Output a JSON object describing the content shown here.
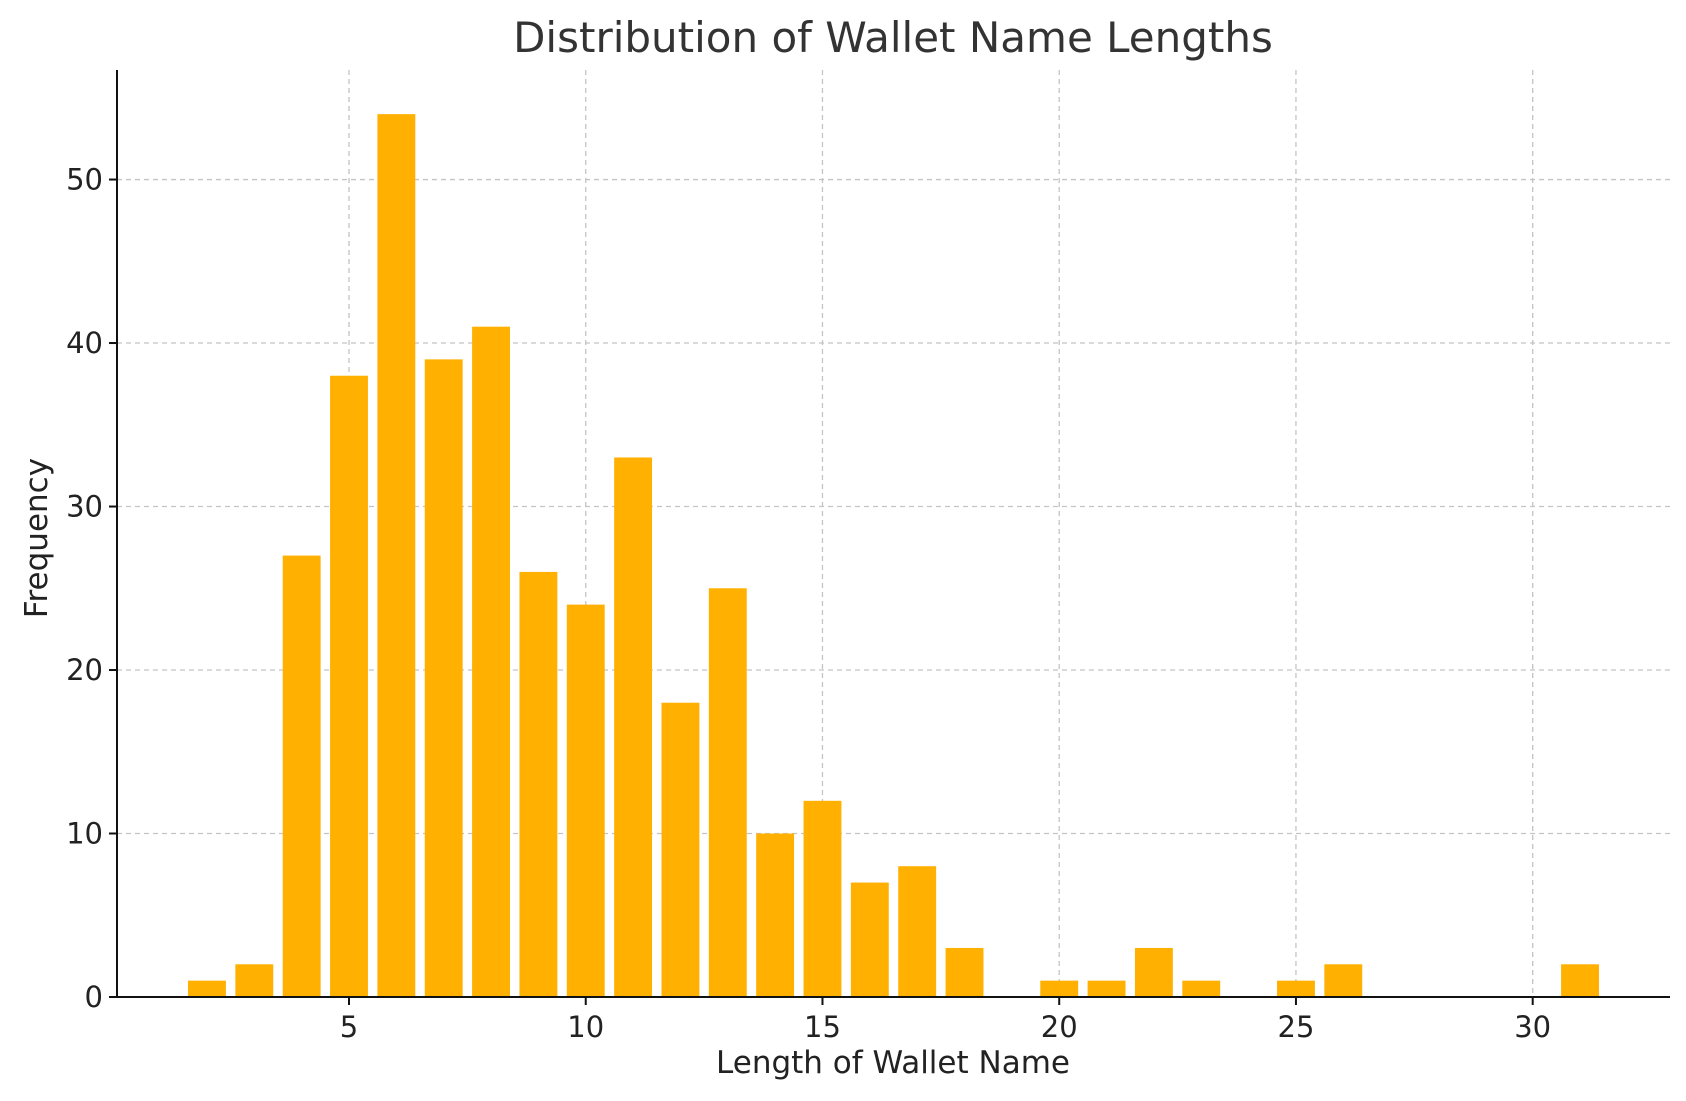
{
  "chart_data": {
    "type": "bar",
    "title": "Distribution of Wallet Name Lengths",
    "xlabel": "Length of Wallet Name",
    "ylabel": "Frequency",
    "x": [
      2,
      3,
      4,
      5,
      6,
      7,
      8,
      9,
      10,
      11,
      12,
      13,
      14,
      15,
      16,
      17,
      18,
      20,
      21,
      22,
      23,
      25,
      26,
      31
    ],
    "values": [
      1,
      2,
      27,
      38,
      54,
      39,
      41,
      26,
      24,
      33,
      18,
      25,
      10,
      12,
      7,
      8,
      3,
      1,
      1,
      3,
      1,
      1,
      2,
      2
    ],
    "xlim": [
      0.1,
      32.9
    ],
    "ylim": [
      0,
      56.7
    ],
    "xticks": [
      5,
      10,
      15,
      20,
      25,
      30
    ],
    "yticks": [
      0,
      10,
      20,
      30,
      40,
      50
    ],
    "bar_color": "#FFB000",
    "grid": true
  }
}
